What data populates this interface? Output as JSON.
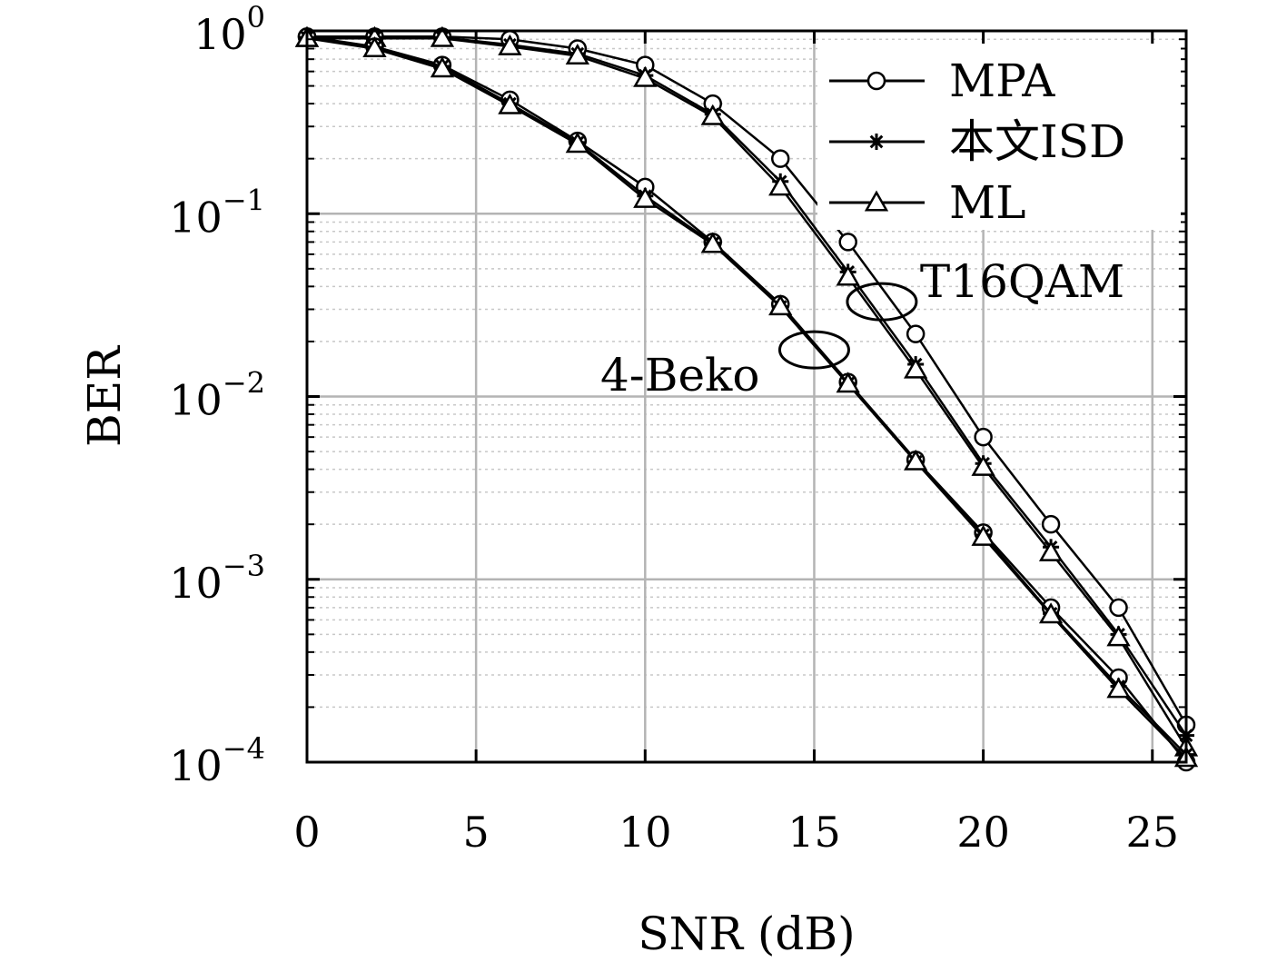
{
  "chart_data": {
    "type": "line",
    "xlabel": "SNR (dB)",
    "ylabel": "BER",
    "xlim": [
      0,
      26
    ],
    "ylim": [
      0.0001,
      1
    ],
    "yscale": "log",
    "grid": true,
    "legend_position": "top-right",
    "x_ticks": [
      0,
      5,
      10,
      15,
      20,
      25
    ],
    "x_tick_labels": [
      "0",
      "5",
      "10",
      "15",
      "20",
      "25"
    ],
    "y_ticks": [
      {
        "value": 1,
        "base": "10",
        "exp": "0"
      },
      {
        "value": 0.1,
        "base": "10",
        "exp": "−1"
      },
      {
        "value": 0.01,
        "base": "10",
        "exp": "−2"
      },
      {
        "value": 0.001,
        "base": "10",
        "exp": "−3"
      },
      {
        "value": 0.0001,
        "base": "10",
        "exp": "−4"
      }
    ],
    "legend": [
      {
        "name": "MPA",
        "marker": "circle"
      },
      {
        "name": "本文ISD",
        "marker": "star"
      },
      {
        "name": "ML",
        "marker": "triangle"
      }
    ],
    "annotations": [
      {
        "text": "T16QAM",
        "x": 17,
        "y": 0.033
      },
      {
        "text": "4-Beko",
        "x": 15,
        "y": 0.018
      }
    ],
    "series": [
      {
        "group": "T16QAM",
        "marker": "circle",
        "x": [
          0,
          2,
          4,
          6,
          8,
          10,
          12,
          14,
          16,
          18,
          20,
          22,
          24,
          26
        ],
        "y": [
          0.93,
          0.93,
          0.93,
          0.9,
          0.8,
          0.65,
          0.4,
          0.2,
          0.07,
          0.022,
          0.006,
          0.002,
          0.0007,
          0.00016
        ]
      },
      {
        "group": "T16QAM",
        "marker": "star",
        "x": [
          0,
          2,
          4,
          6,
          8,
          10,
          12,
          14,
          16,
          18,
          20,
          22,
          24,
          26
        ],
        "y": [
          0.92,
          0.92,
          0.92,
          0.84,
          0.75,
          0.57,
          0.35,
          0.15,
          0.048,
          0.015,
          0.0043,
          0.0015,
          0.0005,
          0.00014
        ]
      },
      {
        "group": "T16QAM",
        "marker": "triangle",
        "x": [
          0,
          2,
          4,
          6,
          8,
          10,
          12,
          14,
          16,
          18,
          20,
          22,
          24,
          26
        ],
        "y": [
          0.91,
          0.91,
          0.91,
          0.82,
          0.73,
          0.55,
          0.34,
          0.14,
          0.045,
          0.014,
          0.0041,
          0.0014,
          0.00048,
          0.00012
        ]
      },
      {
        "group": "4-Beko",
        "marker": "circle",
        "x": [
          0,
          2,
          4,
          6,
          8,
          10,
          12,
          14,
          16,
          18,
          20,
          22,
          24,
          26
        ],
        "y": [
          0.93,
          0.82,
          0.65,
          0.42,
          0.25,
          0.14,
          0.07,
          0.032,
          0.012,
          0.0045,
          0.0018,
          0.0007,
          0.00029,
          0.0001
        ]
      },
      {
        "group": "4-Beko",
        "marker": "star",
        "x": [
          0,
          2,
          4,
          6,
          8,
          10,
          12,
          14,
          16,
          18,
          20,
          22,
          24,
          26
        ],
        "y": [
          0.92,
          0.81,
          0.64,
          0.4,
          0.245,
          0.125,
          0.069,
          0.031,
          0.0118,
          0.0044,
          0.00175,
          0.00065,
          0.00026,
          0.00011
        ]
      },
      {
        "group": "4-Beko",
        "marker": "triangle",
        "x": [
          0,
          2,
          4,
          6,
          8,
          10,
          12,
          14,
          16,
          18,
          20,
          22,
          24,
          26
        ],
        "y": [
          0.91,
          0.8,
          0.62,
          0.39,
          0.24,
          0.12,
          0.068,
          0.031,
          0.0117,
          0.0044,
          0.0017,
          0.00064,
          0.00025,
          0.000105
        ]
      }
    ]
  }
}
